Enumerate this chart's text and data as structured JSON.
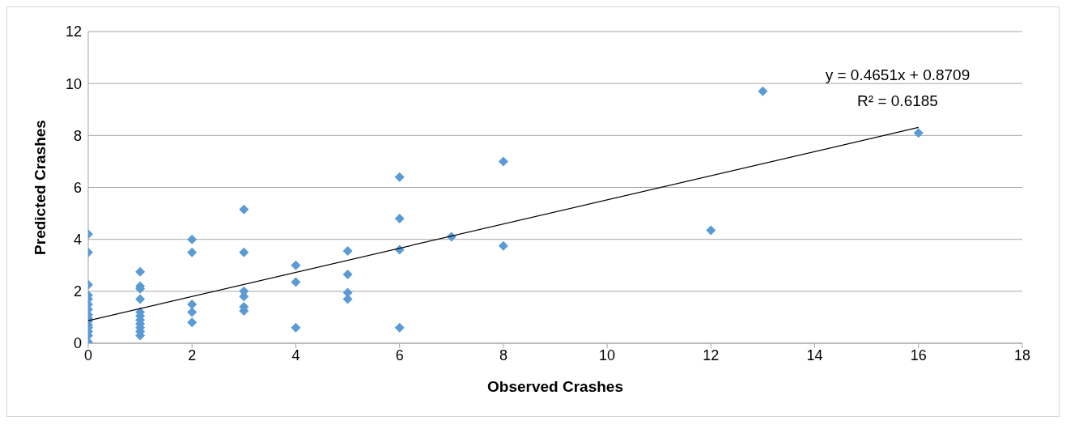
{
  "chart_data": {
    "type": "scatter",
    "xlabel": "Observed Crashes",
    "ylabel": "Predicted Crashes",
    "annotations": [
      "y = 0.4651x + 0.8709",
      "R² = 0.6185"
    ],
    "xlim": [
      0,
      18
    ],
    "xticks": [
      0,
      2,
      4,
      6,
      8,
      10,
      12,
      14,
      16,
      18
    ],
    "ylim": [
      0,
      12
    ],
    "yticks": [
      0,
      2,
      4,
      6,
      8,
      10,
      12
    ],
    "grid": "y",
    "marker": "diamond",
    "series": [
      {
        "color": "#5b9bd5",
        "x": [
          0,
          0,
          0,
          0,
          0,
          0,
          0,
          0,
          0,
          0,
          0,
          0,
          0,
          0,
          0,
          1,
          1,
          1,
          1,
          1,
          1,
          1,
          1,
          1,
          1,
          1,
          2,
          2,
          2,
          2,
          2,
          3,
          3,
          3,
          3,
          3,
          3,
          4,
          4,
          4,
          5,
          5,
          5,
          5,
          6,
          6,
          6,
          6,
          7,
          8,
          8,
          12,
          13,
          16
        ],
        "values": [
          4.2,
          3.5,
          2.25,
          1.85,
          1.7,
          1.5,
          1.3,
          1.1,
          0.95,
          0.85,
          0.7,
          0.6,
          0.45,
          0.3,
          0.05,
          2.75,
          2.2,
          2.1,
          1.7,
          1.2,
          1.05,
          0.9,
          0.75,
          0.6,
          0.45,
          0.3,
          4.0,
          3.5,
          1.5,
          1.2,
          0.8,
          5.15,
          3.5,
          2.0,
          1.8,
          1.4,
          1.25,
          3.0,
          2.35,
          0.6,
          3.55,
          2.65,
          1.95,
          1.7,
          6.4,
          4.8,
          3.6,
          0.6,
          4.1,
          7.0,
          3.75,
          4.35,
          9.7,
          8.1
        ]
      },
      {
        "type": "line",
        "color": "#000000",
        "marker": "none",
        "line_style": "solid",
        "x": [
          0,
          16
        ],
        "values": [
          0.87,
          8.31
        ]
      }
    ]
  }
}
